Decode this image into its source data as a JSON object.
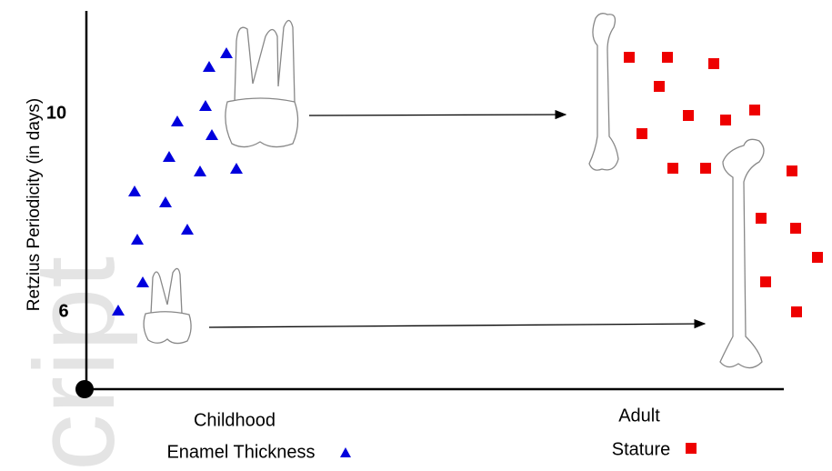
{
  "watermark": "cript",
  "axis": {
    "label": "Retzius Periodicity (in days)",
    "ticks": [
      "10",
      "6"
    ]
  },
  "groups": [
    {
      "line1": "Childhood",
      "line2": "Enamel Thickness"
    },
    {
      "line1": "Adult",
      "line2": "Stature"
    }
  ]
}
